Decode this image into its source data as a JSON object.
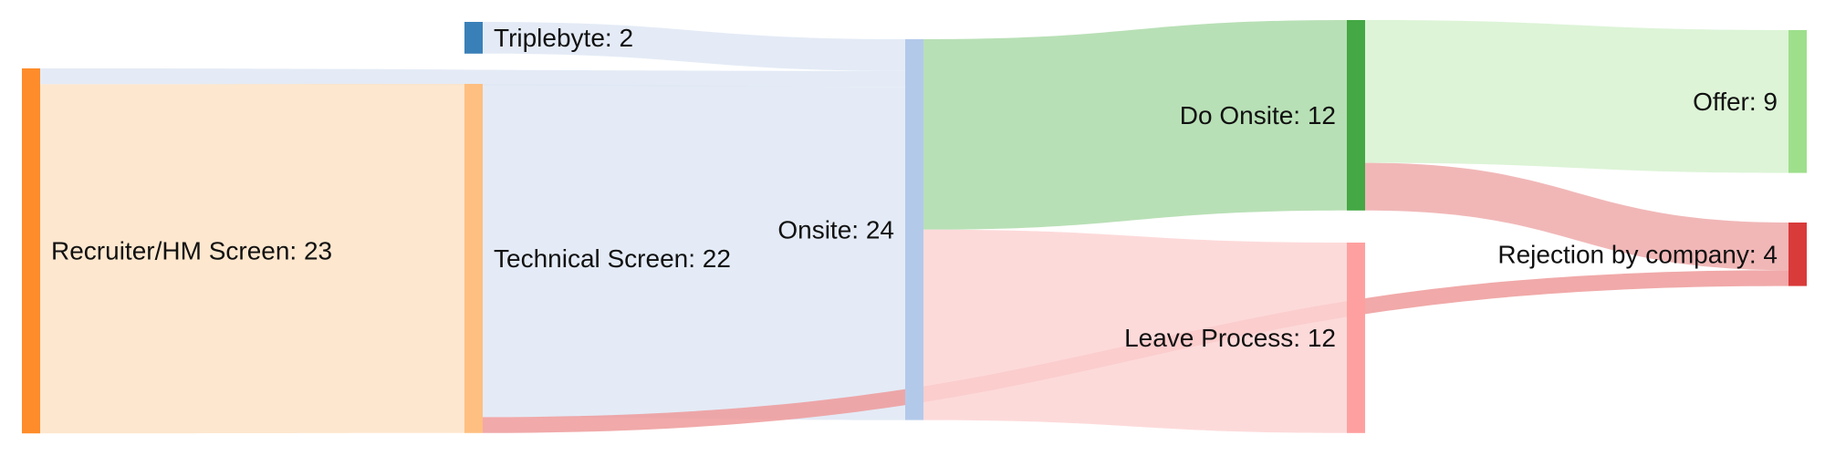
{
  "nodes": [
    {
      "id": "recruiter",
      "label": "Recruiter/HM Screen: 23",
      "color": "#ff8c2a"
    },
    {
      "id": "triplebyte",
      "label": "Triplebyte: 2",
      "color": "#3a80b8"
    },
    {
      "id": "technical",
      "label": "Technical Screen: 22",
      "color": "#ffbf80"
    },
    {
      "id": "onsite",
      "label": "Onsite: 24",
      "color": "#b3c9ea"
    },
    {
      "id": "do_onsite",
      "label": "Do Onsite: 12",
      "color": "#44a844"
    },
    {
      "id": "leave",
      "label": "Leave Process: 12",
      "color": "#ffa0a0"
    },
    {
      "id": "offer",
      "label": "Offer: 9",
      "color": "#9edf8c"
    },
    {
      "id": "rejection",
      "label": "Rejection by company: 4",
      "color": "#d93a3a"
    }
  ],
  "links": [
    {
      "source": "recruiter",
      "target": "onsite",
      "value": 1,
      "color": "#dfe8f5"
    },
    {
      "source": "recruiter",
      "target": "technical",
      "value": 22,
      "color": "#fde3c7"
    },
    {
      "source": "triplebyte",
      "target": "onsite",
      "value": 2,
      "color": "#dfe8f5"
    },
    {
      "source": "technical",
      "target": "onsite",
      "value": 21,
      "color": "#dfe8f5"
    },
    {
      "source": "technical",
      "target": "rejection",
      "value": 1,
      "color": "#ee9a9a"
    },
    {
      "source": "onsite",
      "target": "do_onsite",
      "value": 12,
      "color": "#acdaa9"
    },
    {
      "source": "onsite",
      "target": "leave",
      "value": 12,
      "color": "#fdd4d4"
    },
    {
      "source": "do_onsite",
      "target": "offer",
      "value": 9,
      "color": "#d7f2d0"
    },
    {
      "source": "do_onsite",
      "target": "rejection",
      "value": 3,
      "color": "#eeaaaa"
    }
  ]
}
